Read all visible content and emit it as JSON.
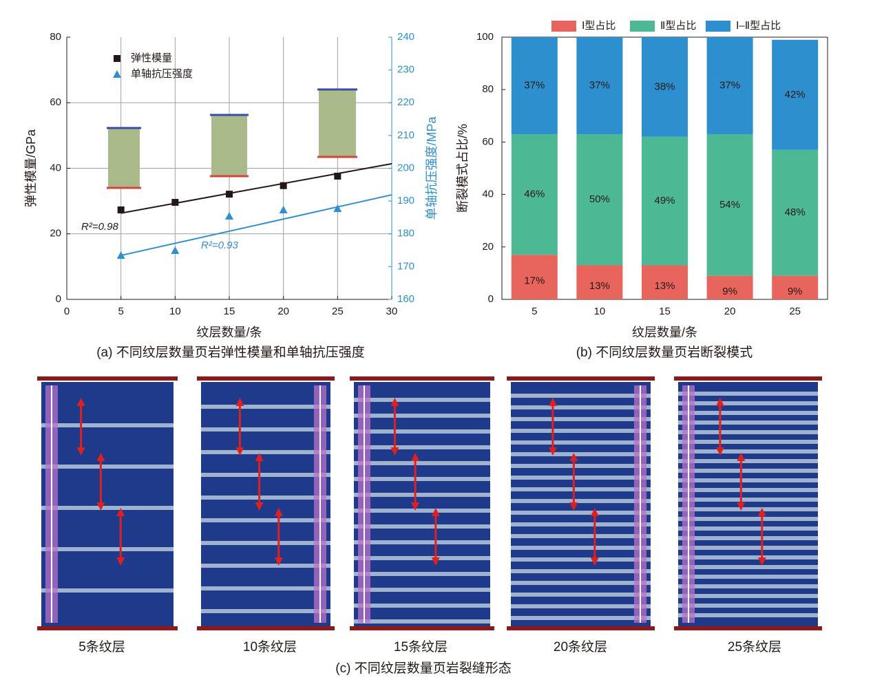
{
  "chart_data": [
    {
      "type": "scatter",
      "caption": "(a) 不同纹层数量页岩弹性模量和单轴抗压强度",
      "x_label": "纹层数量/条",
      "y_label": "弹性模量/GPa",
      "y2_label": "单轴抗压强度/MPa",
      "xlim": [
        0,
        30
      ],
      "xticks": [
        0,
        5,
        10,
        15,
        20,
        25,
        30
      ],
      "ylim": [
        0,
        80
      ],
      "yticks": [
        0,
        20,
        40,
        60,
        80
      ],
      "y2lim": [
        160,
        240
      ],
      "y2ticks": [
        160,
        170,
        180,
        190,
        200,
        210,
        220,
        230,
        240
      ],
      "grid": true,
      "legend": "upper left",
      "x": [
        5,
        10,
        15,
        20,
        25
      ],
      "series": [
        {
          "name": "弹性模量",
          "color": "#231815",
          "marker": "square",
          "values": [
            27.3,
            29.6,
            32.1,
            34.7,
            37.6
          ],
          "fit": {
            "x": [
              5,
              30
            ],
            "values": [
              26.3,
              41.4
            ],
            "label": "R²=0.98"
          }
        },
        {
          "name": "单轴抗压强度",
          "color": "#2e8fcf",
          "marker": "triangle",
          "axis": "y2",
          "values": [
            173.4,
            174.9,
            185.4,
            187.3,
            187.7
          ],
          "fit": {
            "x": [
              5,
              30
            ],
            "values": [
              173.4,
              191.9
            ],
            "label": "R²=0.93"
          }
        }
      ]
    },
    {
      "type": "bar",
      "stacked": true,
      "caption": "(b) 不同纹层数量页岩断裂模式",
      "x_label": "纹层数量/条",
      "y_label": "断裂模式占比/%",
      "categories": [
        "5",
        "10",
        "15",
        "20",
        "25"
      ],
      "ylim": [
        0,
        100
      ],
      "yticks": [
        0,
        20,
        40,
        60,
        80,
        100
      ],
      "legend": "top",
      "series": [
        {
          "name": "Ⅰ型占比",
          "color": "#e8655e",
          "values": [
            17,
            13,
            13,
            9,
            9
          ],
          "value_labels": [
            "17%",
            "13%",
            "13%",
            "9%",
            "9%"
          ]
        },
        {
          "name": "Ⅱ型占比",
          "color": "#4db894",
          "values": [
            46,
            50,
            49,
            54,
            48
          ],
          "value_labels": [
            "46%",
            "50%",
            "49%",
            "54%",
            "48%"
          ]
        },
        {
          "name": "Ⅰ–Ⅱ型占比",
          "color": "#2e8fcf",
          "values": [
            37,
            37,
            38,
            37,
            42
          ],
          "value_labels": [
            "37%",
            "37%",
            "38%",
            "37%",
            "42%"
          ]
        }
      ]
    }
  ],
  "panel_c": {
    "caption": "(c) 不同纹层数量页岩裂缝形态",
    "labels": [
      "5条纹层",
      "10条纹层",
      "15条纹层",
      "20条纹层",
      "25条纹层"
    ]
  }
}
